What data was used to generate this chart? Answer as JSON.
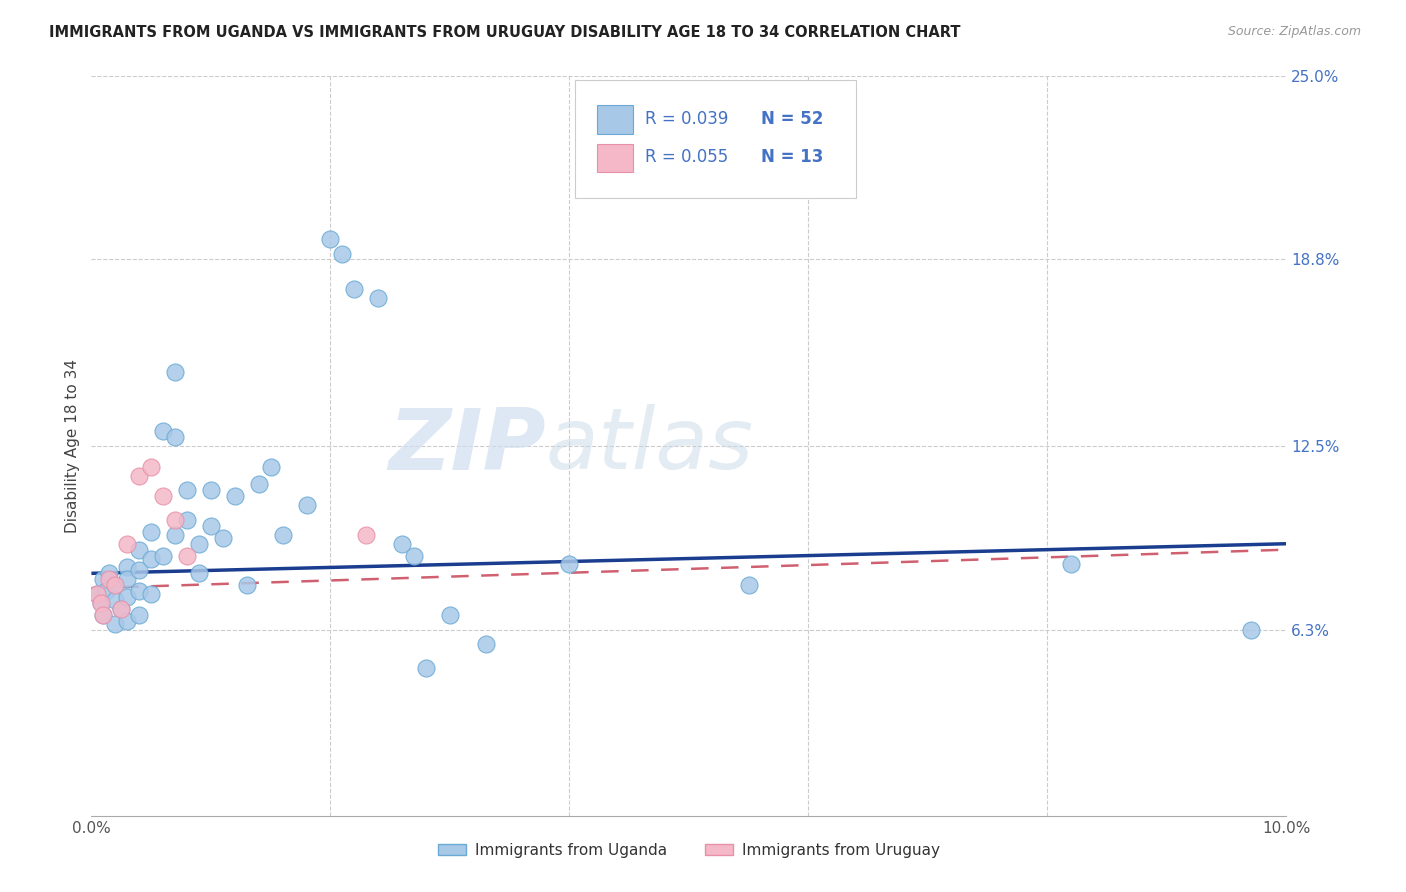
{
  "title": "IMMIGRANTS FROM UGANDA VS IMMIGRANTS FROM URUGUAY DISABILITY AGE 18 TO 34 CORRELATION CHART",
  "source": "Source: ZipAtlas.com",
  "ylabel": "Disability Age 18 to 34",
  "xlim": [
    0.0,
    0.1
  ],
  "ylim": [
    0.0,
    0.25
  ],
  "uganda_color": "#a8c8e8",
  "uruguay_color": "#f4b8c8",
  "uganda_edge": "#6aaad4",
  "uruguay_edge": "#e890a8",
  "trend_uganda_color": "#1a3d8f",
  "trend_uruguay_color": "#d06070",
  "legend_R_uganda": "R = 0.039",
  "legend_N_uganda": "N = 52",
  "legend_R_uruguay": "R = 0.055",
  "legend_N_uruguay": "N = 13",
  "label_uganda": "Immigrants from Uganda",
  "label_uruguay": "Immigrants from Uruguay",
  "ytick_vals": [
    0.063,
    0.125,
    0.188,
    0.25
  ],
  "ytick_labels": [
    "6.3%",
    "12.5%",
    "18.8%",
    "25.0%"
  ],
  "xtick_vals": [
    0.0,
    0.1
  ],
  "xtick_labels": [
    "0.0%",
    "10.0%"
  ],
  "uganda_x": [
    0.0005,
    0.0008,
    0.001,
    0.001,
    0.0012,
    0.0015,
    0.002,
    0.002,
    0.002,
    0.0025,
    0.003,
    0.003,
    0.003,
    0.003,
    0.004,
    0.004,
    0.004,
    0.004,
    0.005,
    0.005,
    0.005,
    0.006,
    0.006,
    0.007,
    0.007,
    0.007,
    0.008,
    0.008,
    0.009,
    0.009,
    0.01,
    0.01,
    0.011,
    0.012,
    0.013,
    0.014,
    0.015,
    0.016,
    0.018,
    0.02,
    0.021,
    0.022,
    0.024,
    0.026,
    0.027,
    0.028,
    0.03,
    0.033,
    0.04,
    0.055,
    0.082,
    0.097
  ],
  "uganda_y": [
    0.075,
    0.072,
    0.08,
    0.068,
    0.076,
    0.082,
    0.078,
    0.073,
    0.065,
    0.07,
    0.084,
    0.08,
    0.074,
    0.066,
    0.09,
    0.083,
    0.076,
    0.068,
    0.096,
    0.087,
    0.075,
    0.13,
    0.088,
    0.15,
    0.128,
    0.095,
    0.11,
    0.1,
    0.092,
    0.082,
    0.11,
    0.098,
    0.094,
    0.108,
    0.078,
    0.112,
    0.118,
    0.095,
    0.105,
    0.195,
    0.19,
    0.178,
    0.175,
    0.092,
    0.088,
    0.05,
    0.068,
    0.058,
    0.085,
    0.078,
    0.085,
    0.063
  ],
  "uruguay_x": [
    0.0005,
    0.0008,
    0.001,
    0.0015,
    0.002,
    0.0025,
    0.003,
    0.004,
    0.005,
    0.006,
    0.007,
    0.008,
    0.023
  ],
  "uruguay_y": [
    0.075,
    0.072,
    0.068,
    0.08,
    0.078,
    0.07,
    0.092,
    0.115,
    0.118,
    0.108,
    0.1,
    0.088,
    0.095
  ],
  "trend_uganda_x0": 0.0,
  "trend_uganda_x1": 0.1,
  "trend_uganda_y0": 0.082,
  "trend_uganda_y1": 0.092,
  "trend_uruguay_x0": 0.0,
  "trend_uruguay_x1": 0.1,
  "trend_uruguay_y0": 0.077,
  "trend_uruguay_y1": 0.09
}
